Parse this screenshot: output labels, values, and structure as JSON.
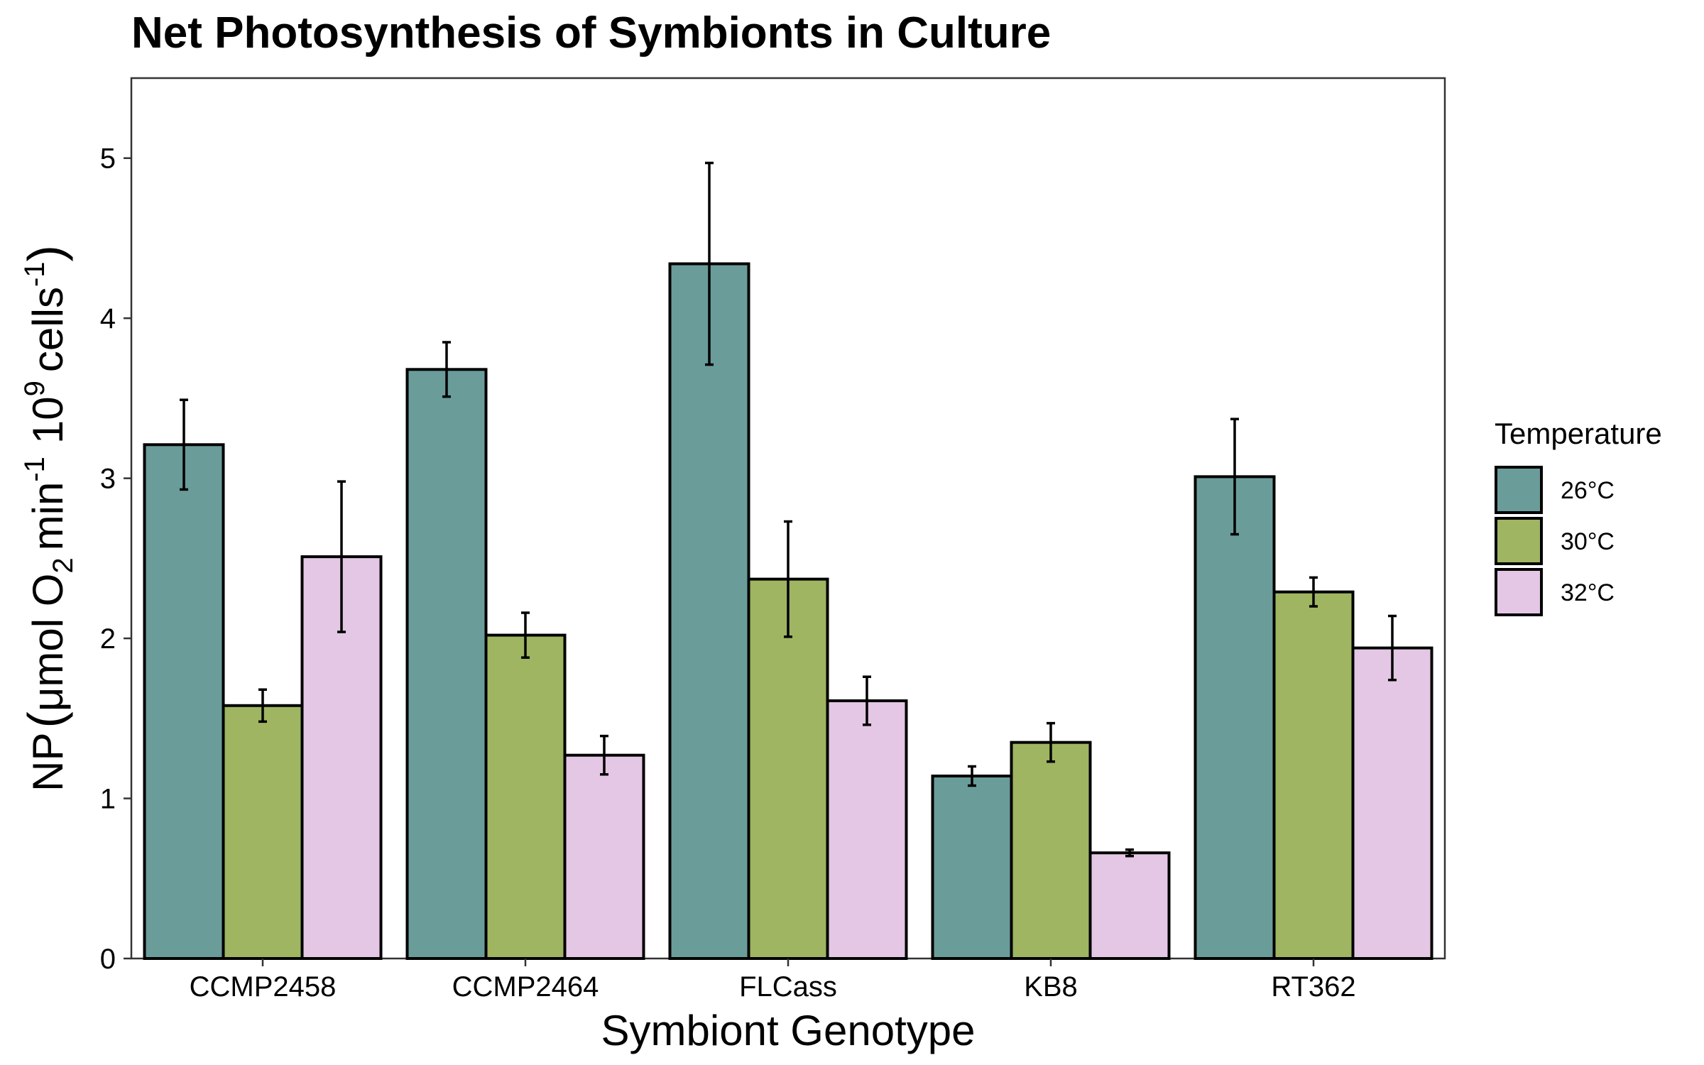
{
  "chart_data": {
    "type": "bar",
    "title": "Net Photosynthesis of Symbionts in Culture",
    "xlabel": "Symbiont Genotype",
    "ylabel": {
      "prefix": "NP",
      "unit_main": "μmol O",
      "o2_subscript": "2",
      "min": "min",
      "min_exp": "-1",
      "ten": "10",
      "ten_exp": "9",
      "cells": "cells",
      "cells_exp": "-1"
    },
    "categories": [
      "CCMP2458",
      "CCMP2464",
      "FLCass",
      "KB8",
      "RT362"
    ],
    "ylim": [
      0,
      5.5
    ],
    "yticks": [
      0,
      1,
      2,
      3,
      4,
      5
    ],
    "grid": false,
    "legend": {
      "title": "Temperature",
      "position": "right"
    },
    "series": [
      {
        "name": "26°C",
        "color": "#6a9c9a",
        "values": [
          3.21,
          3.68,
          4.34,
          1.14,
          3.01
        ],
        "errors": [
          0.28,
          0.17,
          0.63,
          0.06,
          0.36
        ]
      },
      {
        "name": "30°C",
        "color": "#9fb562",
        "values": [
          1.58,
          2.02,
          2.37,
          1.35,
          2.29
        ],
        "errors": [
          0.1,
          0.14,
          0.36,
          0.12,
          0.09
        ]
      },
      {
        "name": "32°C",
        "color": "#e4c7e4",
        "values": [
          2.51,
          1.27,
          1.61,
          0.66,
          1.94
        ],
        "errors": [
          0.47,
          0.12,
          0.15,
          0.02,
          0.2
        ]
      }
    ]
  }
}
